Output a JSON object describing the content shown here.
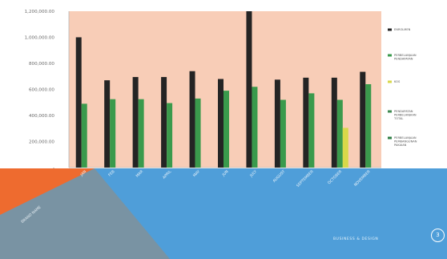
{
  "chart_data": {
    "type": "bar",
    "categories": [
      "JAN",
      "FEB",
      "MAR",
      "APRIL",
      "MAY",
      "JUN",
      "JULY",
      "AUGUST",
      "SEPTEMBER",
      "OCTOBER",
      "NOVEMBER"
    ],
    "ylim": [
      0,
      1200000
    ],
    "y_ticks": [
      "1,200,000.00",
      "1,000,000.00",
      "800,000.00",
      "600,000.00",
      "400,000.00",
      "200,000.00",
      "-"
    ],
    "y_tick_values": [
      1200000,
      1000000,
      800000,
      600000,
      400000,
      200000,
      0
    ],
    "grid": false,
    "legend_position": "right",
    "series": [
      {
        "name": "ENROLMEN",
        "color": "#242424",
        "values": [
          1000000,
          670000,
          695000,
          695000,
          740000,
          680000,
          1200000,
          675000,
          690000,
          690000,
          735000
        ]
      },
      {
        "name": "PERBELANJAAN PENDAPATAN",
        "color": "#3a9a4c",
        "values": [
          490000,
          525000,
          525000,
          495000,
          530000,
          590000,
          620000,
          520000,
          570000,
          520000,
          640000
        ]
      },
      {
        "name": "KOS",
        "color": "#d8d84a",
        "values": [
          0,
          0,
          0,
          0,
          0,
          0,
          0,
          0,
          0,
          305000,
          0
        ]
      },
      {
        "name": "PENDAPATAN PERBELANJAAN TOTAL",
        "color": "#3f8a52",
        "values": [
          0,
          0,
          0,
          0,
          0,
          0,
          0,
          0,
          0,
          0,
          0
        ]
      },
      {
        "name": "PERBELANJAAN PEMBANGUNAN PAKAIAN",
        "color": "#2f7f45",
        "values": [
          0,
          0,
          0,
          0,
          0,
          0,
          0,
          0,
          0,
          0,
          0
        ]
      }
    ]
  },
  "footer": {
    "left_text": "BRAND NAME",
    "right_text": "BUSINESS & DESIGN",
    "slide_number": "3"
  },
  "colors": {
    "plot_background": "#f8cdb7",
    "accent_orange": "#ee6b2f",
    "accent_blue": "#4f9ed9",
    "accent_gray": "#7993a3"
  }
}
